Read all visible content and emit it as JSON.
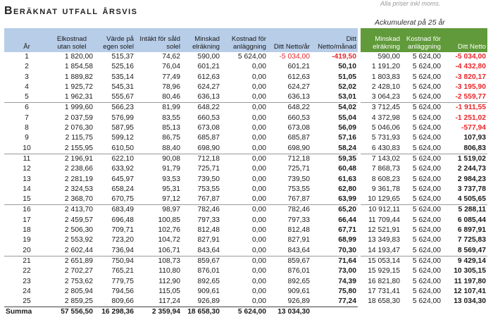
{
  "title": "Beräknat utfall årsvis",
  "note": "Alla priser inkl moms.",
  "accumulated_label": "Ackumulerat på 25 år",
  "headers": {
    "year": "År",
    "elcost": [
      "Elkostnad",
      "utan solel"
    ],
    "own_value": [
      "Värde på",
      "egen solel"
    ],
    "income": [
      "Intäkt för såld",
      "solel"
    ],
    "reduced": [
      "Minskad",
      "elräkning"
    ],
    "install_cost": [
      "Kostnad för",
      "anläggning"
    ],
    "net_year": [
      "",
      "Ditt Netto/år"
    ],
    "net_month": [
      "Ditt",
      "Netto/månad"
    ]
  },
  "acc_headers": {
    "reduced": [
      "Minskad",
      "elräkning"
    ],
    "install_cost": [
      "Kostnad för",
      "anläggning"
    ],
    "net": [
      "",
      "Ditt Netto"
    ]
  },
  "rows": [
    [
      "1",
      "1 820,00",
      "515,37",
      "74,62",
      "590,00",
      "5 624,00",
      "-5 034,00",
      "-419,50",
      "590,00",
      "5 624,00",
      "-5 034,00"
    ],
    [
      "2",
      "1 854,58",
      "525,16",
      "76,04",
      "601,21",
      "0,00",
      "601,21",
      "50,10",
      "1 191,20",
      "5 624,00",
      "-4 432,80"
    ],
    [
      "3",
      "1 889,82",
      "535,14",
      "77,49",
      "612,63",
      "0,00",
      "612,63",
      "51,05",
      "1 803,83",
      "5 624,00",
      "-3 820,17"
    ],
    [
      "4",
      "1 925,72",
      "545,31",
      "78,96",
      "624,27",
      "0,00",
      "624,27",
      "52,02",
      "2 428,10",
      "5 624,00",
      "-3 195,90"
    ],
    [
      "5",
      "1 962,31",
      "555,67",
      "80,46",
      "636,13",
      "0,00",
      "636,13",
      "53,01",
      "3 064,23",
      "5 624,00",
      "-2 559,77"
    ],
    [
      "6",
      "1 999,60",
      "566,23",
      "81,99",
      "648,22",
      "0,00",
      "648,22",
      "54,02",
      "3 712,45",
      "5 624,00",
      "-1 911,55"
    ],
    [
      "7",
      "2 037,59",
      "576,99",
      "83,55",
      "660,53",
      "0,00",
      "660,53",
      "55,04",
      "4 372,98",
      "5 624,00",
      "-1 251,02"
    ],
    [
      "8",
      "2 076,30",
      "587,95",
      "85,13",
      "673,08",
      "0,00",
      "673,08",
      "56,09",
      "5 046,06",
      "5 624,00",
      "-577,94"
    ],
    [
      "9",
      "2 115,75",
      "599,12",
      "86,75",
      "685,87",
      "0,00",
      "685,87",
      "57,16",
      "5 731,93",
      "5 624,00",
      "107,93"
    ],
    [
      "10",
      "2 155,95",
      "610,50",
      "88,40",
      "698,90",
      "0,00",
      "698,90",
      "58,24",
      "6 430,83",
      "5 624,00",
      "806,83"
    ],
    [
      "11",
      "2 196,91",
      "622,10",
      "90,08",
      "712,18",
      "0,00",
      "712,18",
      "59,35",
      "7 143,02",
      "5 624,00",
      "1 519,02"
    ],
    [
      "12",
      "2 238,66",
      "633,92",
      "91,79",
      "725,71",
      "0,00",
      "725,71",
      "60,48",
      "7 868,73",
      "5 624,00",
      "2 244,73"
    ],
    [
      "13",
      "2 281,19",
      "645,97",
      "93,53",
      "739,50",
      "0,00",
      "739,50",
      "61,63",
      "8 608,23",
      "5 624,00",
      "2 984,23"
    ],
    [
      "14",
      "2 324,53",
      "658,24",
      "95,31",
      "753,55",
      "0,00",
      "753,55",
      "62,80",
      "9 361,78",
      "5 624,00",
      "3 737,78"
    ],
    [
      "15",
      "2 368,70",
      "670,75",
      "97,12",
      "767,87",
      "0,00",
      "767,87",
      "63,99",
      "10 129,65",
      "5 624,00",
      "4 505,65"
    ],
    [
      "16",
      "2 413,70",
      "683,49",
      "98,97",
      "782,46",
      "0,00",
      "782,46",
      "65,20",
      "10 912,11",
      "5 624,00",
      "5 288,11"
    ],
    [
      "17",
      "2 459,57",
      "696,48",
      "100,85",
      "797,33",
      "0,00",
      "797,33",
      "66,44",
      "11 709,44",
      "5 624,00",
      "6 085,44"
    ],
    [
      "18",
      "2 506,30",
      "709,71",
      "102,76",
      "812,48",
      "0,00",
      "812,48",
      "67,71",
      "12 521,91",
      "5 624,00",
      "6 897,91"
    ],
    [
      "19",
      "2 553,92",
      "723,20",
      "104,72",
      "827,91",
      "0,00",
      "827,91",
      "68,99",
      "13 349,83",
      "5 624,00",
      "7 725,83"
    ],
    [
      "20",
      "2 602,44",
      "736,94",
      "106,71",
      "843,64",
      "0,00",
      "843,64",
      "70,30",
      "14 193,47",
      "5 624,00",
      "8 569,47"
    ],
    [
      "21",
      "2 651,89",
      "750,94",
      "108,73",
      "859,67",
      "0,00",
      "859,67",
      "71,64",
      "15 053,14",
      "5 624,00",
      "9 429,14"
    ],
    [
      "22",
      "2 702,27",
      "765,21",
      "110,80",
      "876,01",
      "0,00",
      "876,01",
      "73,00",
      "15 929,15",
      "5 624,00",
      "10 305,15"
    ],
    [
      "23",
      "2 753,62",
      "779,75",
      "112,90",
      "892,65",
      "0,00",
      "892,65",
      "74,39",
      "16 821,80",
      "5 624,00",
      "11 197,80"
    ],
    [
      "24",
      "2 805,94",
      "794,56",
      "115,05",
      "909,61",
      "0,00",
      "909,61",
      "75,80",
      "17 731,41",
      "5 624,00",
      "12 107,41"
    ],
    [
      "25",
      "2 859,25",
      "809,66",
      "117,24",
      "926,89",
      "0,00",
      "926,89",
      "77,24",
      "18 658,30",
      "5 624,00",
      "13 034,30"
    ]
  ],
  "sum": [
    "Summa",
    "57 556,50",
    "16 298,36",
    "2 359,94",
    "18 658,30",
    "5 624,00",
    "13 034,30"
  ],
  "colors": {
    "main_header": "#b7cde8",
    "acc_header": "#609a3a",
    "negative": "#e8262a"
  }
}
